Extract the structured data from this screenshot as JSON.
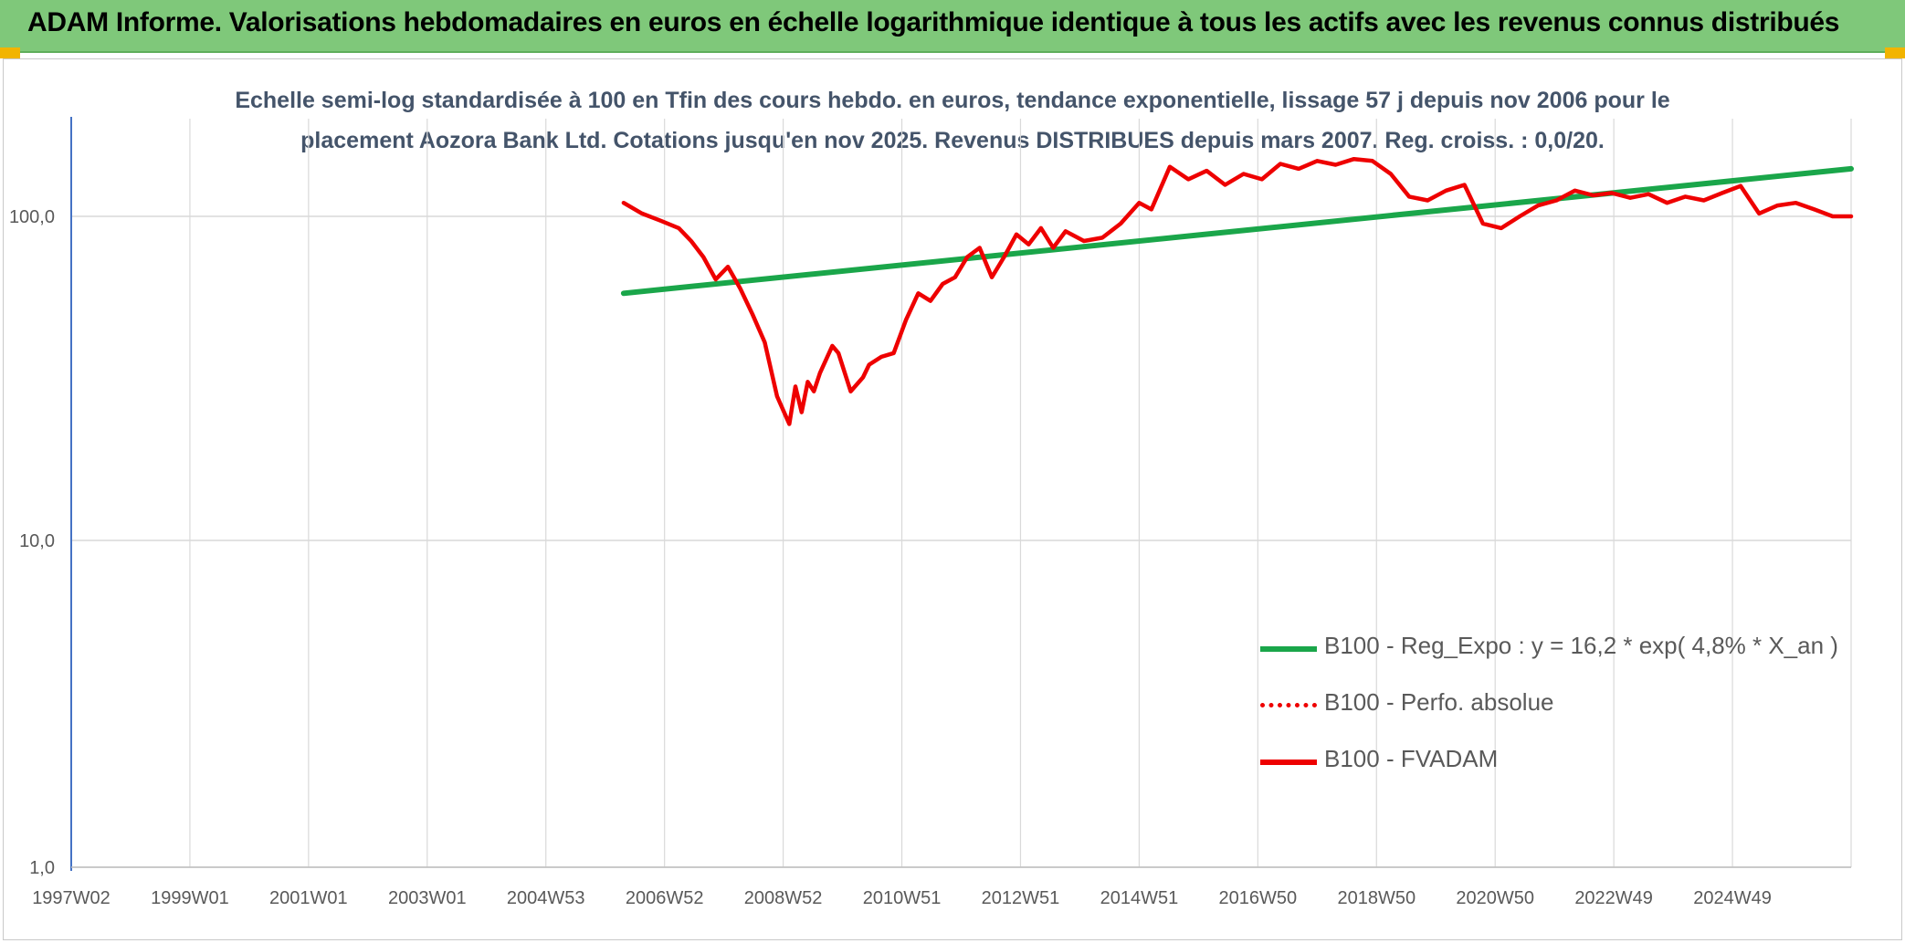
{
  "header": {
    "title": "ADAM Informe. Valorisations hebdomadaires en euros en échelle logarithmique identique à tous les actifs avec les revenus connus distribués"
  },
  "colors": {
    "header_bg": "#7fc87a",
    "regression": "#1aa64a",
    "fvadam": "#ee0000",
    "perfo": "#ee0000",
    "grid": "#d9d9d9",
    "axis": "#4472c4"
  },
  "chart_data": {
    "type": "line",
    "title_line1": "Echelle semi-log standardisée à 100 en Tfin des cours hebdo. en euros, tendance exponentielle, lissage 57 j depuis nov 2006 pour le",
    "title_line2": "placement Aozora Bank Ltd. Cotations jusqu'en nov 2025. Revenus DISTRIBUES depuis mars 2007. Reg. croiss. : 0,0/20.",
    "y_scale": "log",
    "ylim": [
      1,
      190
    ],
    "y_ticks": [
      "100,0",
      "10,0",
      "1,0"
    ],
    "x_range": [
      1997.0,
      2026.0
    ],
    "x_ticks": [
      "1997W02",
      "1999W01",
      "2001W01",
      "2003W01",
      "2004W53",
      "2006W52",
      "2008W52",
      "2010W51",
      "2012W51",
      "2014W51",
      "2016W50",
      "2018W50",
      "2020W50",
      "2022W49",
      "2024W49"
    ],
    "grid": true,
    "legend_position": "bottom-right",
    "series": [
      {
        "name": "B100 - Reg_Expo : y = 16,2 * exp( 4,8% *  X_an )",
        "style": "solid-green",
        "x": [
          2006.0,
          2026.0
        ],
        "y": [
          58,
          140
        ]
      },
      {
        "name": "B100 - Perfo. absolue",
        "style": "dotted-red",
        "x": [],
        "y": []
      },
      {
        "name": "B100 - FVADAM",
        "style": "solid-red",
        "x": [
          2006.0,
          2006.3,
          2006.6,
          2006.9,
          2007.1,
          2007.3,
          2007.5,
          2007.7,
          2007.9,
          2008.1,
          2008.3,
          2008.5,
          2008.7,
          2008.8,
          2008.9,
          2009.0,
          2009.1,
          2009.2,
          2009.4,
          2009.5,
          2009.7,
          2009.9,
          2010.0,
          2010.2,
          2010.4,
          2010.6,
          2010.8,
          2011.0,
          2011.2,
          2011.4,
          2011.6,
          2011.8,
          2012.0,
          2012.2,
          2012.4,
          2012.6,
          2012.8,
          2013.0,
          2013.2,
          2013.5,
          2013.8,
          2014.1,
          2014.4,
          2014.6,
          2014.9,
          2015.2,
          2015.5,
          2015.8,
          2016.1,
          2016.4,
          2016.7,
          2017.0,
          2017.3,
          2017.6,
          2017.9,
          2018.2,
          2018.5,
          2018.8,
          2019.1,
          2019.4,
          2019.7,
          2020.0,
          2020.3,
          2020.6,
          2020.9,
          2021.2,
          2021.5,
          2021.8,
          2022.1,
          2022.4,
          2022.7,
          2023.0,
          2023.3,
          2023.6,
          2023.9,
          2024.2,
          2024.5,
          2024.8,
          2025.1,
          2025.4,
          2025.7,
          2026.0
        ],
        "y": [
          110,
          102,
          97,
          92,
          84,
          75,
          64,
          70,
          60,
          50,
          41,
          28,
          23,
          30,
          25,
          31,
          29,
          33,
          40,
          38,
          29,
          32,
          35,
          37,
          38,
          48,
          58,
          55,
          62,
          65,
          75,
          80,
          65,
          75,
          88,
          82,
          92,
          80,
          90,
          84,
          86,
          95,
          110,
          105,
          142,
          130,
          138,
          125,
          135,
          130,
          145,
          140,
          148,
          144,
          150,
          148,
          135,
          115,
          112,
          120,
          125,
          95,
          92,
          100,
          108,
          112,
          120,
          116,
          118,
          114,
          117,
          110,
          115,
          112,
          118,
          124,
          102,
          108,
          110,
          105,
          100,
          100
        ]
      }
    ]
  }
}
